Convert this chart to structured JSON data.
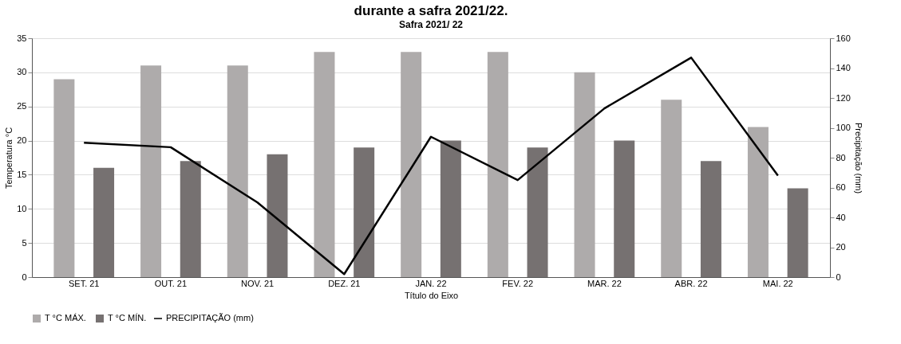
{
  "chart_data": {
    "type": "bar",
    "title": "durante a safra 2021/22.",
    "subtitle": "Safra 2021/ 22",
    "xlabel": "Título do Eixo",
    "ylabel": "Temperatura °C",
    "y2label": "Precipitação (mm)",
    "categories": [
      "SET. 21",
      "OUT. 21",
      "NOV. 21",
      "DEZ. 21",
      "JAN. 22",
      "FEV. 22",
      "MAR. 22",
      "ABR. 22",
      "MAI. 22"
    ],
    "series": [
      {
        "name": "T °C MÁX.",
        "color": "#aeabab",
        "values": [
          29,
          31,
          31,
          33,
          33,
          33,
          30,
          26,
          22
        ]
      },
      {
        "name": "T °C MÍN.",
        "color": "#767171",
        "values": [
          16,
          17,
          18,
          19,
          20,
          19,
          20,
          17,
          13
        ]
      },
      {
        "name": "PRECIPITAÇÃO (mm)",
        "type": "line",
        "axis": "y2",
        "color": "#000000",
        "values": [
          90,
          87,
          50,
          2,
          94,
          65,
          113,
          147,
          68
        ]
      }
    ],
    "ylim": [
      0,
      35
    ],
    "yticks": [
      0,
      5,
      10,
      15,
      20,
      25,
      30,
      35
    ],
    "y2lim": [
      0,
      160
    ],
    "y2ticks": [
      0,
      20,
      40,
      60,
      80,
      100,
      120,
      140,
      160
    ],
    "grid": "y",
    "legend": "bottom"
  }
}
